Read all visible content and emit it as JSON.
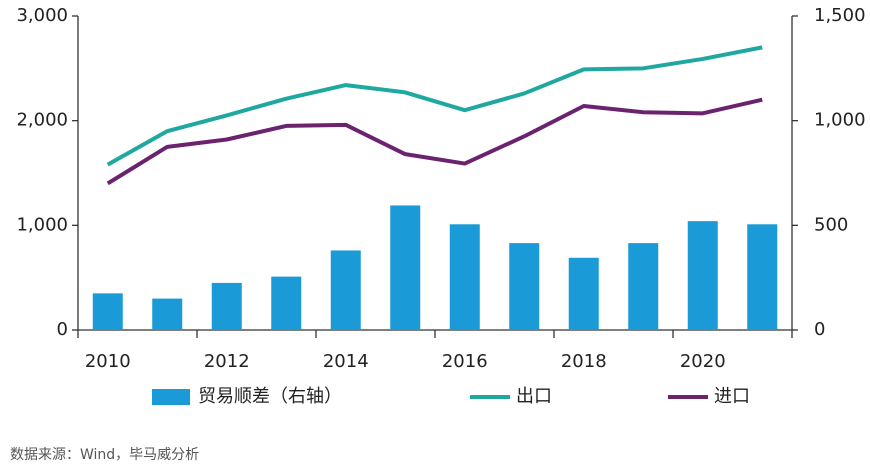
{
  "chart_data": {
    "type": "combo",
    "categories": [
      "2010",
      null,
      "2012",
      null,
      "2014",
      null,
      "2016",
      null,
      "2018",
      null,
      "2020",
      null
    ],
    "series": [
      {
        "name": "贸易顺差（右轴）",
        "type": "bar",
        "axis": "y2",
        "color": "#1a9ad6",
        "values": [
          175,
          150,
          225,
          255,
          380,
          595,
          505,
          415,
          345,
          415,
          520,
          505
        ]
      },
      {
        "name": "出口",
        "type": "line",
        "color": "#1fa8a0",
        "values": [
          1580,
          1900,
          2050,
          2210,
          2340,
          2270,
          2100,
          2260,
          2490,
          2500,
          2590,
          2700
        ]
      },
      {
        "name": "进口",
        "type": "line",
        "color": "#6b2370",
        "values": [
          1400,
          1750,
          1820,
          1950,
          1960,
          1680,
          1590,
          1850,
          2140,
          2080,
          2070,
          2200
        ]
      }
    ],
    "ylim": [
      0,
      3000
    ],
    "yticks": [
      0,
      {
        "value": 1000,
        "label": "1,000"
      },
      {
        "value": 2000,
        "label": "2,000"
      },
      {
        "value": 3000,
        "label": "3,000"
      }
    ],
    "y2lim": [
      0,
      1500
    ],
    "y2ticks": [
      0,
      500,
      {
        "value": 1000,
        "label": "1,000"
      },
      {
        "value": 1500,
        "label": "1,500"
      }
    ],
    "grid": false,
    "legend": "bottom",
    "source": "数据来源：Wind，毕马威分析"
  }
}
